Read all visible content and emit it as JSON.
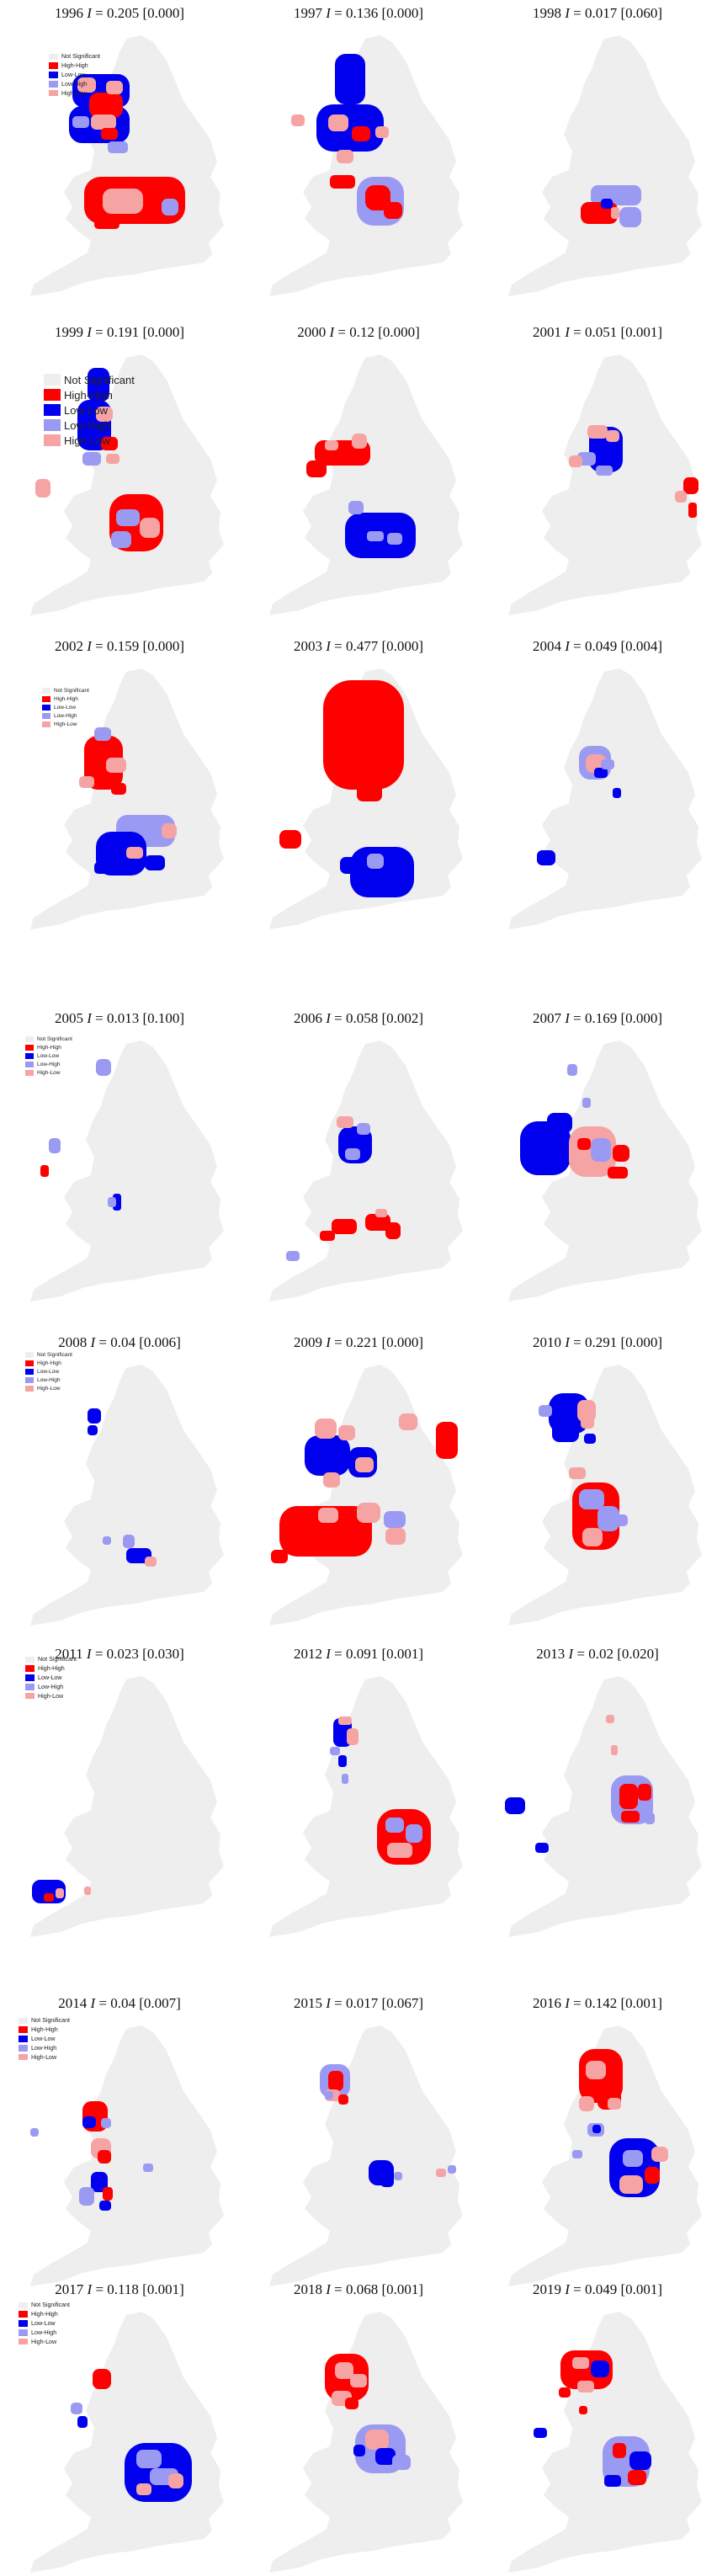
{
  "legend_labels": [
    "Not Significant",
    "High-High",
    "Low-Low",
    "Low-High",
    "High-Low"
  ],
  "legend_colors": [
    "#eeeeee",
    "#ff0000",
    "#0000ee",
    "#9a9af2",
    "#f5a3a3"
  ],
  "panels": [
    {
      "year": "1996",
      "stat_label": "I",
      "value": "= 0.205",
      "p": "[0.000]"
    },
    {
      "year": "1997",
      "stat_label": "I",
      "value": "= 0.136",
      "p": "[0.000]"
    },
    {
      "year": "1998",
      "stat_label": "I",
      "value": "= 0.017",
      "p": "[0.060]"
    },
    {
      "year": "1999",
      "stat_label": "I",
      "value": "= 0.191",
      "p": "[0.000]"
    },
    {
      "year": "2000",
      "stat_label": "I",
      "value": "= 0.12",
      "p": "[0.000]"
    },
    {
      "year": "2001",
      "stat_label": "I",
      "value": "= 0.051",
      "p": "[0.001]"
    },
    {
      "year": "2002",
      "stat_label": "I",
      "value": "= 0.159",
      "p": "[0.000]"
    },
    {
      "year": "2003",
      "stat_label": "I",
      "value": "= 0.477",
      "p": "[0.000]"
    },
    {
      "year": "2004",
      "stat_label": "I",
      "value": "= 0.049",
      "p": "[0.004]"
    },
    {
      "year": "2005",
      "stat_label": "I",
      "value": "= 0.013",
      "p": "[0.100]"
    },
    {
      "year": "2006",
      "stat_label": "I",
      "value": "= 0.058",
      "p": "[0.002]"
    },
    {
      "year": "2007",
      "stat_label": "I",
      "value": "= 0.169",
      "p": "[0.000]"
    },
    {
      "year": "2008",
      "stat_label": "I",
      "value": "= 0.04",
      "p": "[0.006]"
    },
    {
      "year": "2009",
      "stat_label": "I",
      "value": "= 0.221",
      "p": "[0.000]"
    },
    {
      "year": "2010",
      "stat_label": "I",
      "value": "= 0.291",
      "p": "[0.000]"
    },
    {
      "year": "2011",
      "stat_label": "I",
      "value": "= 0.023",
      "p": "[0.030]"
    },
    {
      "year": "2012",
      "stat_label": "I",
      "value": "= 0.091",
      "p": "[0.001]"
    },
    {
      "year": "2013",
      "stat_label": "I",
      "value": "= 0.02",
      "p": "[0.020]"
    },
    {
      "year": "2014",
      "stat_label": "I",
      "value": "= 0.04",
      "p": "[0.007]"
    },
    {
      "year": "2015",
      "stat_label": "I",
      "value": "= 0.017",
      "p": "[0.067]"
    },
    {
      "year": "2016",
      "stat_label": "I",
      "value": "= 0.142",
      "p": "[0.001]"
    },
    {
      "year": "2017",
      "stat_label": "I",
      "value": "= 0.118",
      "p": "[0.001]"
    },
    {
      "year": "2018",
      "stat_label": "I",
      "value": "= 0.068",
      "p": "[0.001]"
    },
    {
      "year": "2019",
      "stat_label": "I",
      "value": "= 0.049",
      "p": "[0.001]"
    }
  ]
}
